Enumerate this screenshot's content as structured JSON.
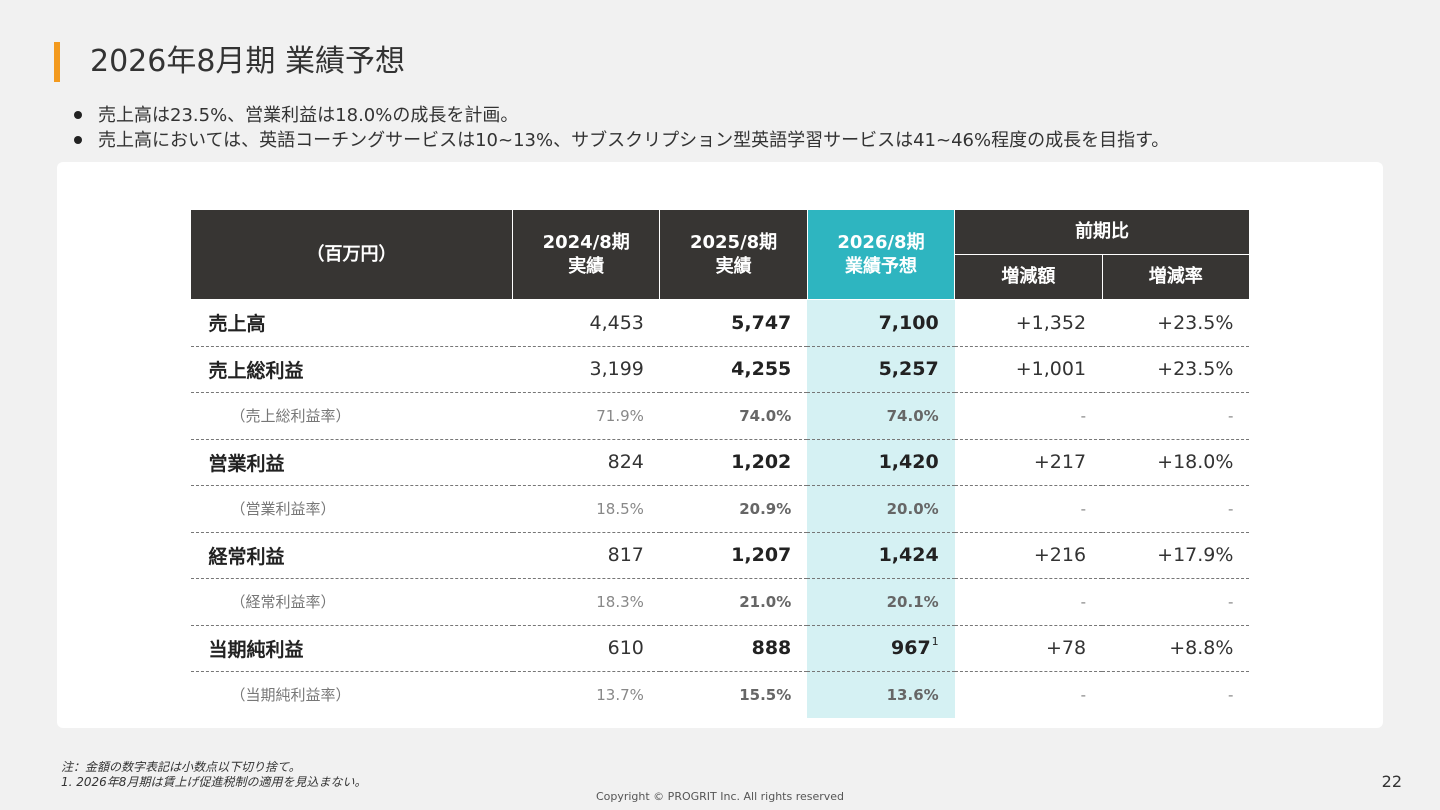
{
  "slide": {
    "title": "2026年8月期 業績予想",
    "bullets": [
      "売上高は23.5%、営業利益は18.0%の成長を計画。",
      "売上高においては、英語コーチングサービスは10~13%、サブスクリプション型英語学習サービスは41~46%程度の成長を目指す。"
    ],
    "accent_color": "#f39a1e",
    "forecast_color": "#2eb5c0",
    "forecast_fill": "#d5f1f3"
  },
  "table": {
    "unit_header": "（百万円）",
    "col_fy24": [
      "2024/8期",
      "実績"
    ],
    "col_fy25": [
      "2025/8期",
      "実績"
    ],
    "col_fy26": [
      "2026/8期",
      "業績予想"
    ],
    "yoy_group": "前期比",
    "yoy_diff": "増減額",
    "yoy_rate": "増減率",
    "rows": [
      {
        "label": "売上高",
        "fy24": "4,453",
        "fy25": "5,747",
        "fy26": "7,100",
        "diff": "+1,352",
        "rate": "+23.5%"
      },
      {
        "label": "売上総利益",
        "fy24": "3,199",
        "fy25": "4,255",
        "fy26": "5,257",
        "diff": "+1,001",
        "rate": "+23.5%"
      },
      {
        "label": "（売上総利益率）",
        "fy24": "71.9%",
        "fy25": "74.0%",
        "fy26": "74.0%",
        "diff": "-",
        "rate": "-"
      },
      {
        "label": "営業利益",
        "fy24": "824",
        "fy25": "1,202",
        "fy26": "1,420",
        "diff": "+217",
        "rate": "+18.0%"
      },
      {
        "label": "（営業利益率）",
        "fy24": "18.5%",
        "fy25": "20.9%",
        "fy26": "20.0%",
        "diff": "-",
        "rate": "-"
      },
      {
        "label": "経常利益",
        "fy24": "817",
        "fy25": "1,207",
        "fy26": "1,424",
        "diff": "+216",
        "rate": "+17.9%"
      },
      {
        "label": "（経常利益率）",
        "fy24": "18.3%",
        "fy25": "21.0%",
        "fy26": "20.1%",
        "diff": "-",
        "rate": "-"
      },
      {
        "label": "当期純利益",
        "fy24": "610",
        "fy25": "888",
        "fy26": "967",
        "fy26_note": "1",
        "diff": "+78",
        "rate": "+8.8%"
      },
      {
        "label": "（当期純利益率）",
        "fy24": "13.7%",
        "fy25": "15.5%",
        "fy26": "13.6%",
        "diff": "-",
        "rate": "-"
      }
    ]
  },
  "notes": [
    "注：金額の数字表記は小数点以下切り捨て。",
    "1.   2026年8月期は賃上げ促進税制の適用を見込まない。"
  ],
  "copyright": "Copyright © PROGRIT Inc. All rights reserved",
  "page_number": "22"
}
